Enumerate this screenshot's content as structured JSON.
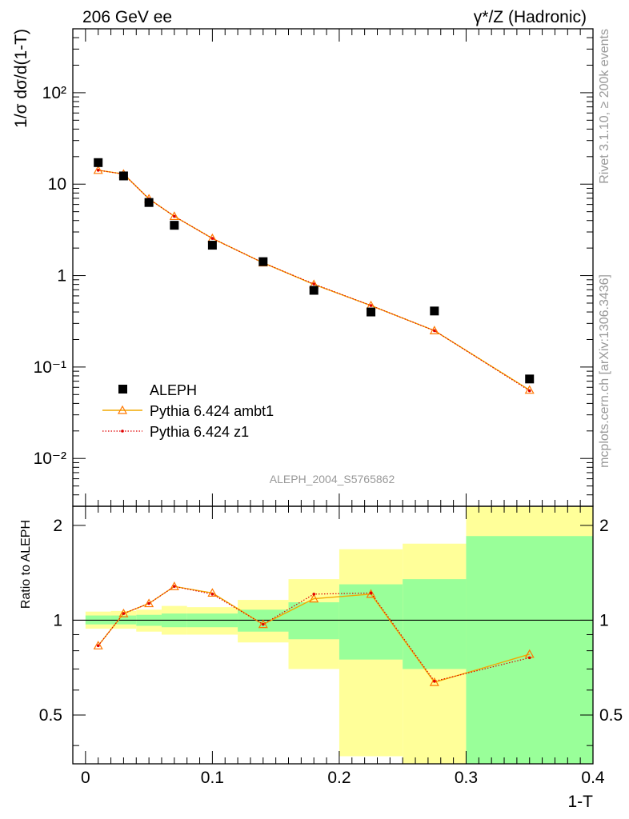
{
  "header": {
    "left": "206 GeV ee",
    "right": "γ*/Z (Hadronic)"
  },
  "side_labels": {
    "rivet": "Rivet 3.1.10, ≥ 200k events",
    "mcplots": "mcplots.cern.ch [arXiv:1306.3436]"
  },
  "analysis_id": "ALEPH_2004_S5765862",
  "colors": {
    "data": "#000000",
    "ambt1": "#f2a900",
    "z1": "#e00000",
    "band_inner": "#99ff99",
    "band_outer": "#ffff99",
    "ambt1_marker": "#ff7700"
  },
  "chart_data": [
    {
      "type": "scatter",
      "panel": "main",
      "ylabel": "1/σ  dσ/d(1-T)",
      "yscale": "log",
      "ylim": [
        0.003,
        500
      ],
      "xlim": [
        -0.01,
        0.4
      ],
      "y_tick_labels": [
        "10⁻²",
        "10⁻¹",
        "1",
        "10",
        "10²"
      ],
      "legend_position": "lower-left",
      "series": [
        {
          "name": "ALEPH",
          "style": "markers",
          "x": [
            0.01,
            0.03,
            0.05,
            0.07,
            0.1,
            0.14,
            0.18,
            0.225,
            0.275,
            0.35
          ],
          "y": [
            17.2,
            12.3,
            6.3,
            3.55,
            2.15,
            1.42,
            0.69,
            0.4,
            0.41,
            0.074
          ]
        },
        {
          "name": "Pythia 6.424 ambt1",
          "style": "line-triangle",
          "x": [
            0.01,
            0.03,
            0.05,
            0.07,
            0.1,
            0.14,
            0.18,
            0.225,
            0.275,
            0.35
          ],
          "y": [
            14.2,
            12.9,
            6.9,
            4.45,
            2.55,
            1.38,
            0.8,
            0.47,
            0.25,
            0.056
          ]
        },
        {
          "name": "Pythia 6.424 z1",
          "style": "dotted-dot",
          "x": [
            0.01,
            0.03,
            0.05,
            0.07,
            0.1,
            0.14,
            0.18,
            0.225,
            0.275,
            0.35
          ],
          "y": [
            14.2,
            12.9,
            6.9,
            4.45,
            2.55,
            1.38,
            0.81,
            0.47,
            0.25,
            0.055
          ]
        }
      ]
    },
    {
      "type": "line",
      "panel": "ratio",
      "ylabel": "Ratio to ALEPH",
      "xlabel": "1-T",
      "ylim": [
        0.35,
        2.3
      ],
      "xlim": [
        -0.01,
        0.4
      ],
      "x_tick_labels": [
        "0",
        "0.1",
        "0.2",
        "0.3",
        "0.4"
      ],
      "y_tick_labels": [
        "0.5",
        "1",
        "2"
      ],
      "bins": [
        {
          "x0": 0.0,
          "x1": 0.02,
          "inner": [
            0.97,
            1.035
          ],
          "outer": [
            0.94,
            1.065
          ]
        },
        {
          "x0": 0.02,
          "x1": 0.04,
          "inner": [
            0.97,
            1.035
          ],
          "outer": [
            0.94,
            1.07
          ]
        },
        {
          "x0": 0.04,
          "x1": 0.06,
          "inner": [
            0.96,
            1.04
          ],
          "outer": [
            0.92,
            1.08
          ]
        },
        {
          "x0": 0.06,
          "x1": 0.08,
          "inner": [
            0.95,
            1.05
          ],
          "outer": [
            0.9,
            1.11
          ]
        },
        {
          "x0": 0.08,
          "x1": 0.12,
          "inner": [
            0.95,
            1.05
          ],
          "outer": [
            0.9,
            1.1
          ]
        },
        {
          "x0": 0.12,
          "x1": 0.16,
          "inner": [
            0.92,
            1.08
          ],
          "outer": [
            0.85,
            1.16
          ]
        },
        {
          "x0": 0.16,
          "x1": 0.2,
          "inner": [
            0.87,
            1.14
          ],
          "outer": [
            0.7,
            1.35
          ]
        },
        {
          "x0": 0.2,
          "x1": 0.25,
          "inner": [
            0.75,
            1.3
          ],
          "outer": [
            0.37,
            1.68
          ]
        },
        {
          "x0": 0.25,
          "x1": 0.3,
          "inner": [
            0.7,
            1.35
          ],
          "outer": [
            0.35,
            1.75
          ]
        },
        {
          "x0": 0.3,
          "x1": 0.4,
          "inner": [
            0.35,
            1.85
          ],
          "outer": [
            0.35,
            2.3
          ]
        }
      ],
      "series": [
        {
          "name": "Pythia 6.424 ambt1",
          "style": "line-triangle",
          "x": [
            0.01,
            0.03,
            0.05,
            0.07,
            0.1,
            0.14,
            0.18,
            0.225,
            0.275,
            0.35
          ],
          "y": [
            0.83,
            1.05,
            1.13,
            1.28,
            1.22,
            0.97,
            1.17,
            1.21,
            0.635,
            0.78
          ]
        },
        {
          "name": "Pythia 6.424 z1",
          "style": "dotted-dot",
          "x": [
            0.01,
            0.03,
            0.05,
            0.07,
            0.1,
            0.14,
            0.18,
            0.225,
            0.275,
            0.35
          ],
          "y": [
            0.83,
            1.05,
            1.13,
            1.28,
            1.21,
            0.97,
            1.21,
            1.22,
            0.64,
            0.76
          ]
        }
      ]
    }
  ]
}
